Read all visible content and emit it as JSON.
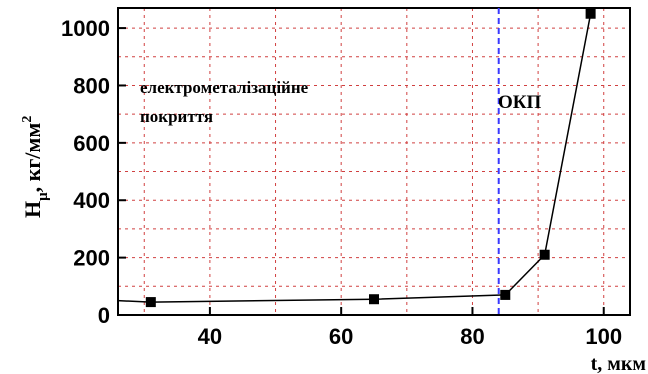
{
  "chart_data": {
    "type": "line",
    "x": [
      31,
      65,
      85,
      91,
      98
    ],
    "y": [
      45,
      55,
      70,
      210,
      1050
    ],
    "xlabel": "t, мкм",
    "ylabel_main": "H",
    "ylabel_sub": "μ",
    "ylabel_unit": ", кг/мм",
    "ylabel_sup": "2",
    "xlim": [
      26,
      104
    ],
    "ylim": [
      0,
      1070
    ],
    "xticks": [
      40,
      60,
      80,
      100
    ],
    "yticks": [
      0,
      200,
      400,
      600,
      800,
      1000
    ],
    "grid": true,
    "region_divider_x": 84,
    "annotations": {
      "left_line1": "електрометалізаційне",
      "left_line2": "покриття",
      "right": "ОКП"
    },
    "line_start_y": 50,
    "colors": {
      "grid": "#d04040",
      "line": "#000000",
      "marker": "#000000"
    }
  }
}
